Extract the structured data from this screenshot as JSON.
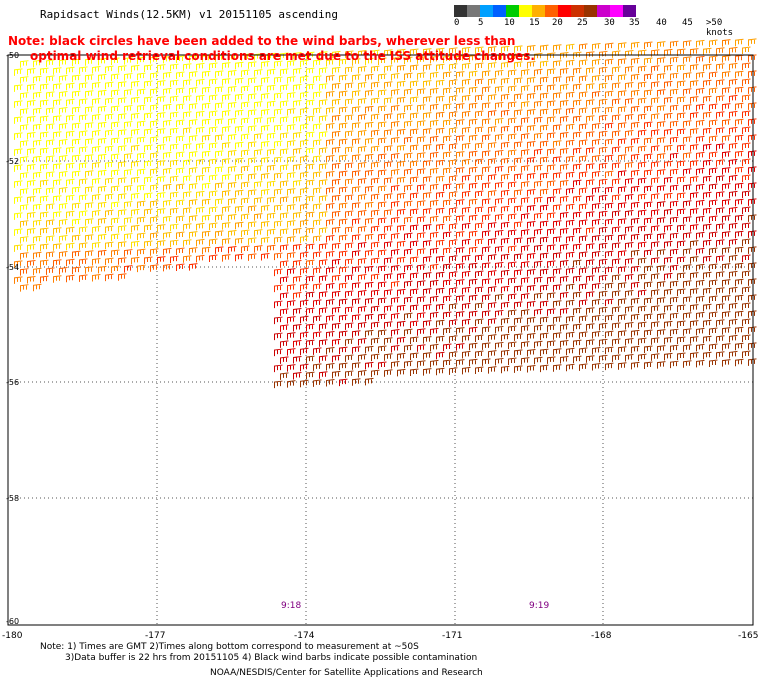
{
  "title": "Rapidsact Winds(12.5KM) v1 20151105 ascending",
  "note_line1": "Note: black circles have been added to the wind barbs, wherever less than",
  "note_line2": "optimal wind retrieval conditions are met due to the ISS attitude changes.",
  "legend": {
    "labels": [
      "0",
      "5",
      "10",
      "15",
      "20",
      "25",
      "30",
      "35",
      "40",
      "45",
      ">50 knots"
    ],
    "colors": [
      "#333333",
      "#777777",
      "#00a0ff",
      "#0060ff",
      "#00cc00",
      "#ffff00",
      "#ffb000",
      "#ff6000",
      "#ff0000",
      "#cc3000",
      "#993300",
      "#cc00cc",
      "#ff00ff",
      "#660099"
    ]
  },
  "x_ticks": [
    "-180",
    "-177",
    "-174",
    "-171",
    "-168",
    "-165"
  ],
  "y_ticks": [
    "-50",
    "-52",
    "-54",
    "-56",
    "-58",
    "-60"
  ],
  "times": [
    "9:18",
    "9:19"
  ],
  "footer_line1": "Note: 1) Times are GMT 2)Times along bottom correspond to measurement at ~50S",
  "footer_line2": "3)Data buffer is 22 hrs from 20151105 4) Black wind barbs indicate possible contamination",
  "footer_line3": "NOAA/NESDIS/Center for Satellite Applications and Research"
}
